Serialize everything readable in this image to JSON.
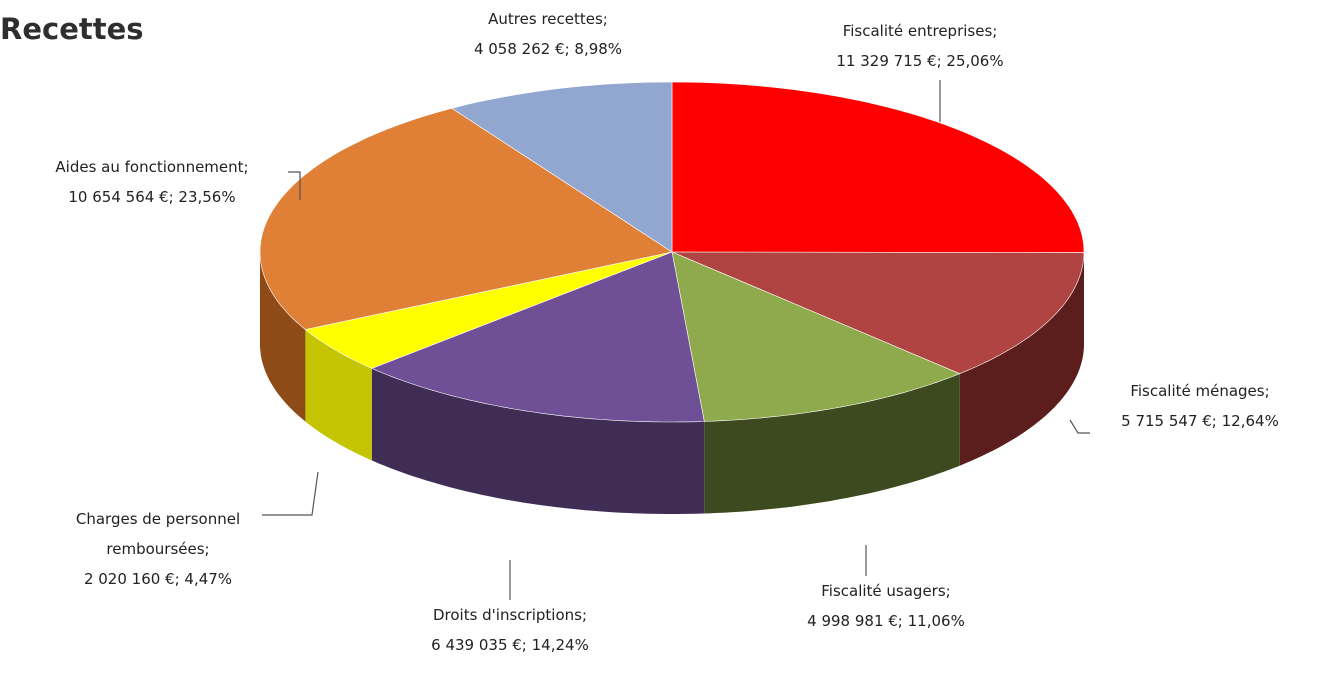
{
  "title": "Recettes",
  "chart_data": {
    "type": "pie",
    "title": "Recettes",
    "slices": [
      {
        "name": "Fiscalité entreprises",
        "value": 11329715,
        "value_label": "11 329 715 €",
        "percent": 25.06,
        "percent_label": "25,06%",
        "color": "#ff0000",
        "side_color": "#8a0000",
        "label_line1": "Fiscalité entreprises;",
        "label_line2": "11 329 715 €; 25,06%"
      },
      {
        "name": "Fiscalité ménages",
        "value": 5715547,
        "value_label": "5 715 547 €",
        "percent": 12.64,
        "percent_label": "12,64%",
        "color": "#b04442",
        "side_color": "#5c1e1c",
        "label_line1": "Fiscalité ménages;",
        "label_line2": "5 715 547 €; 12,64%"
      },
      {
        "name": "Fiscalité usagers",
        "value": 4998981,
        "value_label": "4 998 981 €",
        "percent": 11.06,
        "percent_label": "11,06%",
        "color": "#8faa4c",
        "side_color": "#3d4a1f",
        "label_line1": "Fiscalité usagers;",
        "label_line2": "4 998 981 €; 11,06%"
      },
      {
        "name": "Droits d'inscriptions",
        "value": 6439035,
        "value_label": "6 439 035 €",
        "percent": 14.24,
        "percent_label": "14,24%",
        "color": "#6f4f96",
        "side_color": "#3f2d56",
        "label_line1": "Droits d'inscriptions;",
        "label_line2": "6 439 035 €; 14,24%"
      },
      {
        "name": "Charges de personnel remboursées",
        "value": 2020160,
        "value_label": "2 020 160 €",
        "percent": 4.47,
        "percent_label": "4,47%",
        "color": "#ffff00",
        "side_color": "#c4c400",
        "label_line1": "Charges de personnel",
        "label_line2": "remboursées;",
        "label_line3": "2 020 160 €; 4,47%"
      },
      {
        "name": "Aides au fonctionnement",
        "value": 10654564,
        "value_label": "10 654 564 €",
        "percent": 23.56,
        "percent_label": "23,56%",
        "color": "#e07f36",
        "side_color": "#8e4a17",
        "label_line1": "Aides au fonctionnement;",
        "label_line2": "10 654 564 €; 23,56%"
      },
      {
        "name": "Autres recettes",
        "value": 4058262,
        "value_label": "4 058 262 €",
        "percent": 8.98,
        "percent_label": "8,98%",
        "color": "#91a7d0",
        "side_color": "#52617e",
        "label_line1": "Autres recettes;",
        "label_line2": "4 058 262 €; 8,98%"
      }
    ],
    "style": "3d-perspective",
    "start_angle": "12-o'clock",
    "direction": "clockwise",
    "legend": "none"
  }
}
